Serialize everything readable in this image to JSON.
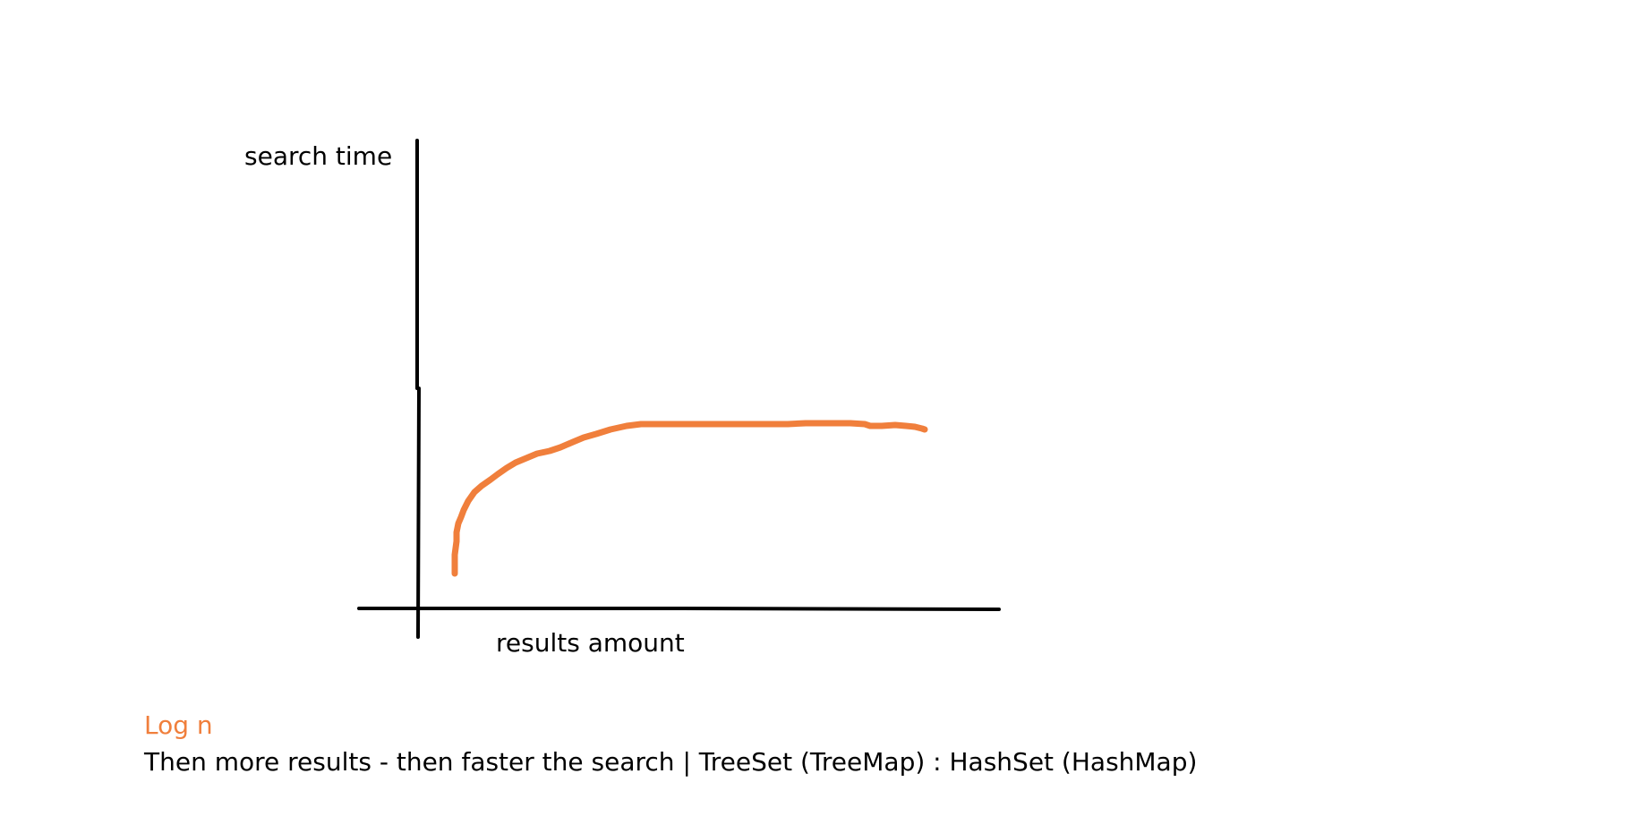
{
  "diagram": {
    "y_axis_label": "search time",
    "x_axis_label": "results amount",
    "curve_label": "Log n",
    "caption": "Then more results - then faster the search | TreeSet (TreeMap) : HashSet (HashMap)",
    "colors": {
      "axis": "#000000",
      "curve": "#F07F3C",
      "curve_label": "#F07F3C",
      "text": "#000000"
    }
  }
}
